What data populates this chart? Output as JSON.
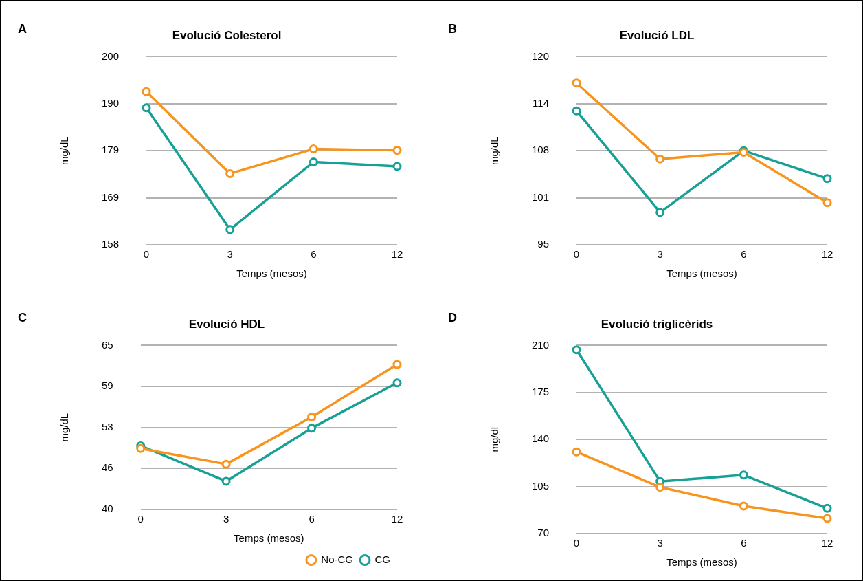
{
  "chart_data": [
    {
      "type": "line",
      "title": "Evolució Colesterol",
      "annotations": [
        "A"
      ],
      "xlabel": "Temps (mesos)",
      "ylabel": "mg/dL",
      "categories": [
        "0",
        "3",
        "6",
        "12"
      ],
      "ylim": [
        158,
        200
      ],
      "yticks": [
        158,
        {
          "value": 168.5,
          "label": "169"
        },
        179,
        {
          "value": 189.5,
          "label": "190"
        },
        200
      ],
      "grid": "y",
      "marker": "circle",
      "legend": false,
      "series": [
        {
          "color": "#f7941d",
          "values": [
            192.2,
            173.9,
            179.4,
            179.1
          ]
        },
        {
          "color": "#16a096",
          "values": [
            188.6,
            161.4,
            176.5,
            175.5
          ]
        }
      ]
    },
    {
      "type": "line",
      "title": "Evolució LDL",
      "annotations": [
        "B"
      ],
      "xlabel": "Temps (mesos)",
      "ylabel": "mg/dL",
      "categories": [
        "0",
        "3",
        "6",
        "12"
      ],
      "ylim": [
        95,
        120
      ],
      "yticks": [
        95,
        {
          "value": 101.25,
          "label": "101"
        },
        {
          "value": 107.5,
          "label": "108"
        },
        {
          "value": 113.75,
          "label": "114"
        },
        120
      ],
      "grid": "y",
      "marker": "circle",
      "legend": false,
      "series": [
        {
          "color": "#f7941d",
          "values": [
            116.5,
            106.4,
            107.3,
            100.6
          ]
        },
        {
          "color": "#16a096",
          "values": [
            112.8,
            99.3,
            107.5,
            103.8
          ]
        }
      ]
    },
    {
      "type": "line",
      "title": "Evolució HDL",
      "annotations": [
        "C"
      ],
      "xlabel": "Temps (mesos)",
      "ylabel": "mg/dL",
      "categories": [
        "0",
        "3",
        "6",
        "12"
      ],
      "ylim": [
        40,
        65
      ],
      "yticks": [
        40,
        {
          "value": 46.25,
          "label": "46"
        },
        {
          "value": 52.5,
          "label": "53"
        },
        {
          "value": 58.75,
          "label": "59"
        },
        65
      ],
      "grid": "y",
      "marker": "circle",
      "legend": "bottom right",
      "series": [
        {
          "name": "No-CG",
          "color": "#f7941d",
          "values": [
            49.3,
            46.9,
            54.1,
            62.1
          ]
        },
        {
          "name": "CG",
          "color": "#16a096",
          "values": [
            49.7,
            44.3,
            52.4,
            59.3
          ]
        }
      ]
    },
    {
      "type": "line",
      "title": "Evolució triglicèrids",
      "annotations": [
        "D"
      ],
      "xlabel": "Temps (mesos)",
      "ylabel": "mg/dl",
      "categories": [
        "0",
        "3",
        "6",
        "12"
      ],
      "ylim": [
        70,
        210
      ],
      "yticks": [
        70,
        105,
        140,
        175,
        210
      ],
      "grid": "y",
      "marker": "circle",
      "legend": false,
      "series": [
        {
          "color": "#f7941d",
          "values": [
            130.8,
            104.5,
            90.5,
            81.3
          ]
        },
        {
          "color": "#16a096",
          "values": [
            206.8,
            108.8,
            113.6,
            88.8
          ]
        }
      ]
    }
  ]
}
